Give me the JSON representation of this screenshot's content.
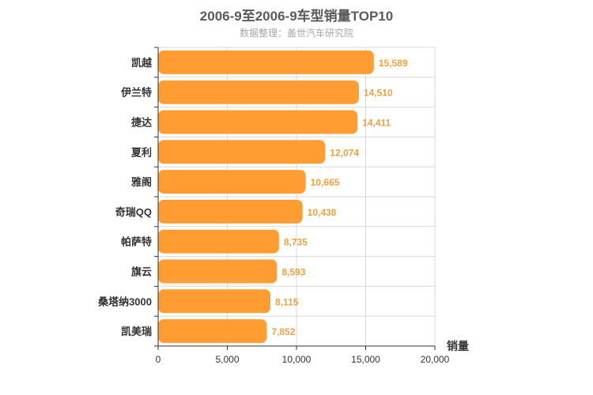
{
  "title": "2006-9至2006-9车型销量TOP10",
  "subtitle": "数据整理：盖世汽车研究院",
  "colors": {
    "bar": "#FF9D33",
    "value_label": "#F0A03C",
    "grid": "#d9d9d9",
    "axis": "#333333"
  },
  "chart_data": {
    "type": "bar",
    "orientation": "horizontal",
    "title": "2006-9至2006-9车型销量TOP10",
    "subtitle": "数据整理：盖世汽车研究院",
    "categories": [
      "凯越",
      "伊兰特",
      "捷达",
      "夏利",
      "雅阁",
      "奇瑞QQ",
      "帕萨特",
      "旗云",
      "桑塔纳3000",
      "凯美瑞"
    ],
    "values": [
      15589,
      14510,
      14411,
      12074,
      10665,
      10438,
      8735,
      8593,
      8115,
      7852
    ],
    "value_labels": [
      "15,589",
      "14,510",
      "14,411",
      "12,074",
      "10,665",
      "10,438",
      "8,735",
      "8,593",
      "8,115",
      "7,852"
    ],
    "xlabel": "销量",
    "ylabel": "",
    "xlim": [
      0,
      20000
    ],
    "x_ticks": [
      0,
      5000,
      10000,
      15000,
      20000
    ],
    "x_tick_labels": [
      "0",
      "5,000",
      "10,000",
      "15,000",
      "20,000"
    ],
    "grid": true,
    "legend": "none"
  }
}
